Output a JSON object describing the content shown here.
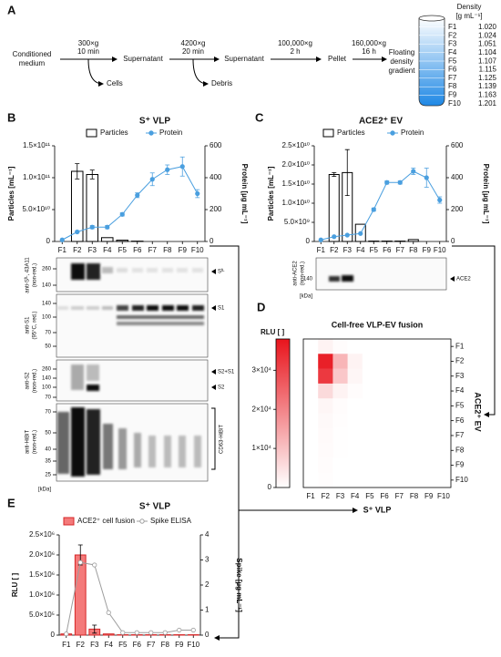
{
  "panels": [
    "A",
    "B",
    "C",
    "D",
    "E"
  ],
  "workflow": {
    "start": [
      "Conditioned",
      "medium"
    ],
    "steps": [
      {
        "speed": "300×g",
        "time": "10 min",
        "removed": "Cells",
        "product": "Supernatant"
      },
      {
        "speed": "4200×g",
        "time": "20 min",
        "removed": "Debris",
        "product": "Supernatant"
      },
      {
        "speed": "100,000×g",
        "time": "2 h",
        "product": "Pellet"
      },
      {
        "speed": "160,000×g",
        "time": "16 h",
        "product": [
          "Floating",
          "density",
          "gradient"
        ]
      }
    ],
    "density": {
      "title": "Density",
      "unit": "[g mL⁻¹]",
      "fractions": [
        "F1",
        "F2",
        "F3",
        "F4",
        "F5",
        "F6",
        "F7",
        "F8",
        "F9",
        "F10"
      ],
      "values": [
        "1.020",
        "1.024",
        "1.051",
        "1.104",
        "1.107",
        "1.115",
        "1.125",
        "1.139",
        "1.163",
        "1.201"
      ]
    }
  },
  "blots": {
    "b": [
      {
        "label": "anti-Sᶠᴸ, 43A11",
        "sublabel": "(non-red.)",
        "markers": [
          "260",
          "140"
        ],
        "bands": [
          "Sᶠᴸ"
        ]
      },
      {
        "label": "anti-S1",
        "sublabel": "(95°C, red.)",
        "markers": [
          "140",
          "100",
          "70",
          "50"
        ],
        "bands": [
          "S1"
        ]
      },
      {
        "label": "anti-S2",
        "sublabel": "(non-red.)",
        "markers": [
          "260",
          "140",
          "100",
          "70"
        ],
        "bands": [
          "S2+S1",
          "S2"
        ]
      },
      {
        "label": "anti-HiBiT",
        "sublabel": "(non-red.)",
        "markers": [
          "70",
          "50",
          "40",
          "35",
          "25"
        ],
        "bands": [
          "CD63-HiBiT"
        ]
      }
    ],
    "c": {
      "label": "anti-ACE2",
      "sublabel": "(non-red.)",
      "markers": [
        "140"
      ],
      "bands": [
        "ACE2"
      ]
    },
    "kda": "[kDa]"
  },
  "chart_data": [
    {
      "type": "combo",
      "title": "S⁺ VLP",
      "categories": [
        "F1",
        "F2",
        "F3",
        "F4",
        "F5",
        "F6",
        "F7",
        "F8",
        "F9",
        "F10"
      ],
      "ylabel": "Particles [mL⁻¹]",
      "y2label": "Protein [µg mL⁻¹]",
      "ylim": [
        0,
        150000000000
      ],
      "yticks": [
        0,
        {
          "value": 50000000000,
          "label": "5.0×10¹⁰"
        },
        {
          "value": 100000000000,
          "label": "1.0×10¹¹"
        },
        {
          "value": 150000000000,
          "label": "1.5×10¹¹"
        }
      ],
      "y2lim": [
        0,
        600
      ],
      "y2ticks": [
        0,
        200,
        400,
        600
      ],
      "series": [
        {
          "name": "Particles",
          "type": "bar",
          "color": "#ffffff",
          "edgecolor": "#000000",
          "values": [
            0,
            110000000000,
            105000000000,
            6000000000,
            2000000000,
            500000000,
            0,
            0,
            0,
            0
          ],
          "errors": [
            null,
            12000000000,
            7000000000,
            null,
            null,
            null,
            null,
            null,
            null,
            null
          ]
        },
        {
          "name": "Protein",
          "type": "line",
          "axis": "y2",
          "color": "#4a9fdf",
          "marker": "filled",
          "values": [
            10,
            60,
            90,
            90,
            170,
            290,
            390,
            450,
            470,
            300
          ],
          "errors": [
            null,
            5,
            10,
            10,
            10,
            15,
            40,
            30,
            60,
            25
          ]
        }
      ]
    },
    {
      "type": "combo",
      "title": "ACE2⁺ EV",
      "categories": [
        "F1",
        "F2",
        "F3",
        "F4",
        "F5",
        "F6",
        "F7",
        "F8",
        "F9",
        "F10"
      ],
      "ylabel": "Particles [mL⁻¹]",
      "y2label": "Protein [µg mL⁻¹]",
      "ylim": [
        0,
        25000000000
      ],
      "yticks": [
        0,
        {
          "value": 5000000000,
          "label": "5.0×10⁹"
        },
        {
          "value": 10000000000,
          "label": "1.0×10¹⁰"
        },
        {
          "value": 15000000000,
          "label": "1.5×10¹⁰"
        },
        {
          "value": 20000000000,
          "label": "2.0×10¹⁰"
        },
        {
          "value": 25000000000,
          "label": "2.5×10¹⁰"
        }
      ],
      "y2lim": [
        0,
        600
      ],
      "y2ticks": [
        0,
        200,
        400,
        600
      ],
      "series": [
        {
          "name": "Particles",
          "type": "bar",
          "color": "#ffffff",
          "edgecolor": "#000000",
          "values": [
            0,
            17500000000,
            18000000000,
            4500000000,
            100000000,
            100000000,
            100000000,
            500000000,
            0,
            0
          ],
          "errors": [
            null,
            500000000,
            6000000000,
            null,
            null,
            null,
            null,
            null,
            null,
            null
          ]
        },
        {
          "name": "Protein",
          "type": "line",
          "axis": "y2",
          "color": "#4a9fdf",
          "marker": "filled",
          "values": [
            10,
            30,
            40,
            50,
            200,
            370,
            370,
            440,
            400,
            260
          ],
          "errors": [
            null,
            null,
            null,
            null,
            10,
            10,
            10,
            20,
            60,
            20
          ]
        }
      ]
    },
    {
      "type": "heatmap",
      "title": "Cell-free VLP-EV fusion",
      "colorbar_label": "RLU [ ]",
      "xlabel": "S⁺ VLP",
      "ylabel": "ACE2⁺ EV",
      "x_categories": [
        "F1",
        "F2",
        "F3",
        "F4",
        "F5",
        "F6",
        "F7",
        "F8",
        "F9",
        "F10"
      ],
      "y_categories": [
        "F1",
        "F2",
        "F3",
        "F4",
        "F5",
        "F6",
        "F7",
        "F8",
        "F9",
        "F10"
      ],
      "colors": [
        "#ffffff",
        "#e8141c"
      ],
      "zlim": [
        0,
        38000
      ],
      "zticks": [
        0,
        {
          "value": 10000,
          "label": "1×10⁴"
        },
        {
          "value": 20000,
          "label": "2×10⁴"
        },
        {
          "value": 30000,
          "label": "3×10⁴"
        }
      ],
      "values": [
        [
          0,
          2000,
          500,
          0,
          0,
          0,
          0,
          0,
          0,
          0
        ],
        [
          0,
          36000,
          12000,
          2000,
          0,
          0,
          0,
          0,
          0,
          0
        ],
        [
          0,
          32000,
          9000,
          1500,
          0,
          0,
          0,
          0,
          0,
          0
        ],
        [
          0,
          6000,
          2000,
          500,
          0,
          0,
          0,
          0,
          0,
          0
        ],
        [
          0,
          1500,
          500,
          0,
          0,
          0,
          0,
          0,
          0,
          0
        ],
        [
          0,
          1000,
          300,
          0,
          0,
          0,
          0,
          0,
          0,
          0
        ],
        [
          0,
          800,
          200,
          0,
          0,
          0,
          0,
          0,
          0,
          0
        ],
        [
          0,
          600,
          200,
          0,
          0,
          0,
          0,
          0,
          0,
          0
        ],
        [
          0,
          500,
          0,
          0,
          0,
          0,
          0,
          0,
          0,
          0
        ],
        [
          0,
          300,
          0,
          0,
          0,
          0,
          0,
          0,
          0,
          0
        ]
      ]
    },
    {
      "type": "combo",
      "title": "S⁺ VLP",
      "categories": [
        "F1",
        "F2",
        "F3",
        "F4",
        "F5",
        "F6",
        "F7",
        "F8",
        "F9",
        "F10"
      ],
      "ylabel": "RLU [ ]",
      "y2label": "Spike [µg mL⁻¹]",
      "ylim": [
        0,
        2500000
      ],
      "yticks": [
        0,
        {
          "value": 500000,
          "label": "5.0×10⁵"
        },
        {
          "value": 1000000,
          "label": "1.0×10⁶"
        },
        {
          "value": 1500000,
          "label": "1.5×10⁶"
        },
        {
          "value": 2000000,
          "label": "2.0×10⁶"
        },
        {
          "value": 2500000,
          "label": "2.5×10⁶"
        }
      ],
      "y2lim": [
        0,
        4
      ],
      "y2ticks": [
        0,
        1,
        2,
        3,
        4
      ],
      "series": [
        {
          "name": "ACE2⁺ cell fusion",
          "type": "bar",
          "color": "#f47a7a",
          "edgecolor": "#d62728",
          "values": [
            30000,
            2000000,
            150000,
            30000,
            10000,
            10000,
            10000,
            10000,
            10000,
            10000
          ],
          "errors": [
            null,
            250000,
            100000,
            null,
            null,
            null,
            null,
            null,
            null,
            null
          ]
        },
        {
          "name": "Spike ELISA",
          "type": "line",
          "axis": "y2",
          "color": "#9e9e9e",
          "marker": "open",
          "values": [
            0.05,
            2.9,
            2.8,
            0.9,
            0.1,
            0.1,
            0.1,
            0.1,
            0.2,
            0.2
          ],
          "errors": [
            null,
            null,
            null,
            null,
            null,
            null,
            null,
            null,
            null,
            null
          ]
        }
      ]
    }
  ]
}
